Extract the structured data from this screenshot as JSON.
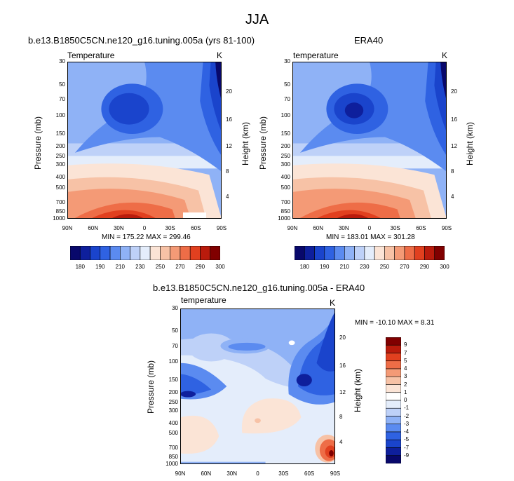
{
  "page_title": "JJA",
  "colors": {
    "abs_scale": [
      "#08086b",
      "#0e1f9c",
      "#1a44cc",
      "#2f62e2",
      "#5b8bf0",
      "#8fb2f6",
      "#bed1f8",
      "#e4edfb",
      "#fbe4d6",
      "#f7c2a6",
      "#f49a76",
      "#ee6d47",
      "#e1401f",
      "#b91b0c",
      "#800000"
    ],
    "diff_scale": [
      "#08086b",
      "#0e1f9c",
      "#1a44cc",
      "#2f62e2",
      "#5b8bf0",
      "#8fb2f6",
      "#bed1f8",
      "#e4edfb",
      "#ffffff",
      "#fbe4d6",
      "#f7c2a6",
      "#f49a76",
      "#ee6d47",
      "#e1401f",
      "#b91b0c",
      "#800000"
    ]
  },
  "chart_data": [
    {
      "type": "heatmap",
      "title": "b.e13.B1850C5CN.ne120_g16.tuning.005a (yrs 81-100)",
      "variable_label": "Temperature",
      "units": "K",
      "ylabel": "Pressure (mb)",
      "ylabel_right": "Height (km)",
      "x_ticks": [
        "90N",
        "60N",
        "30N",
        "0",
        "30S",
        "60S",
        "90S"
      ],
      "y_ticks": [
        "30",
        "50",
        "70",
        "100",
        "150",
        "200",
        "250",
        "300",
        "400",
        "500",
        "700",
        "850",
        "1000"
      ],
      "y_right_ticks": [
        "20",
        "16",
        "12",
        "8",
        "4"
      ],
      "xlim": [
        90,
        -90
      ],
      "ylim": [
        1000,
        30
      ],
      "min": 175.22,
      "max": 299.46,
      "minmax_text": "MIN = 175.22  MAX = 299.46",
      "colorbar_labels": [
        "180",
        "190",
        "210",
        "230",
        "250",
        "270",
        "290",
        "300"
      ]
    },
    {
      "type": "heatmap",
      "title": "ERA40",
      "variable_label": "temperature",
      "units": "K",
      "ylabel": "Pressure (mb)",
      "ylabel_right": "Height (km)",
      "x_ticks": [
        "90N",
        "60N",
        "30N",
        "0",
        "30S",
        "60S",
        "90S"
      ],
      "y_ticks": [
        "30",
        "50",
        "70",
        "100",
        "150",
        "200",
        "250",
        "300",
        "400",
        "500",
        "700",
        "850",
        "1000"
      ],
      "y_right_ticks": [
        "20",
        "16",
        "12",
        "8",
        "4"
      ],
      "xlim": [
        90,
        -90
      ],
      "ylim": [
        1000,
        30
      ],
      "min": 183.01,
      "max": 301.28,
      "minmax_text": "MIN = 183.01  MAX = 301.28",
      "colorbar_labels": [
        "180",
        "190",
        "210",
        "230",
        "250",
        "270",
        "290",
        "300"
      ]
    },
    {
      "type": "heatmap",
      "title": "b.e13.B1850C5CN.ne120_g16.tuning.005a - ERA40",
      "variable_label": "temperature",
      "units": "K",
      "ylabel": "Pressure (mb)",
      "ylabel_right": "Height (km)",
      "x_ticks": [
        "90N",
        "60N",
        "30N",
        "0",
        "30S",
        "60S",
        "90S"
      ],
      "y_ticks": [
        "30",
        "50",
        "70",
        "100",
        "150",
        "200",
        "250",
        "300",
        "400",
        "500",
        "700",
        "850",
        "1000"
      ],
      "y_right_ticks": [
        "20",
        "16",
        "12",
        "8",
        "4"
      ],
      "xlim": [
        90,
        -90
      ],
      "ylim": [
        1000,
        30
      ],
      "min": -10.1,
      "max": 8.31,
      "minmax_text": "MIN = -10.10  MAX =   8.31",
      "colorbar_labels": [
        "9",
        "7",
        "5",
        "4",
        "3",
        "2",
        "1",
        "0",
        "-1",
        "-2",
        "-3",
        "-4",
        "-5",
        "-7",
        "-9"
      ]
    }
  ]
}
